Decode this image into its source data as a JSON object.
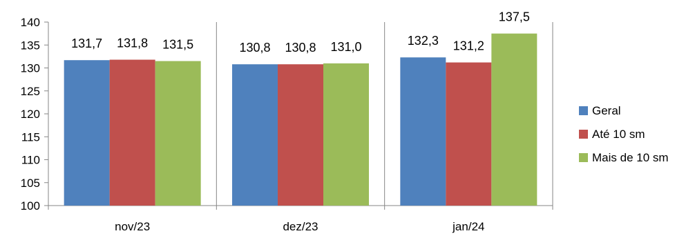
{
  "chart_data": {
    "type": "bar",
    "categories": [
      "nov/23",
      "dez/23",
      "jan/24"
    ],
    "series": [
      {
        "name": "Geral",
        "color": "#4F81BD",
        "values": [
          131.7,
          130.8,
          132.3
        ],
        "labels": [
          "131,7",
          "130,8",
          "132,3"
        ]
      },
      {
        "name": "Até 10 sm",
        "color": "#C0504D",
        "values": [
          131.8,
          130.8,
          131.2
        ],
        "labels": [
          "131,8",
          "130,8",
          "131,2"
        ]
      },
      {
        "name": "Mais de 10 sm",
        "color": "#9BBB59",
        "values": [
          131.5,
          131.0,
          137.5
        ],
        "labels": [
          "131,5",
          "131,0",
          "137,5"
        ]
      }
    ],
    "yticks": [
      100,
      105,
      110,
      115,
      120,
      125,
      130,
      135,
      140
    ],
    "ylim": [
      100,
      140
    ],
    "title": "",
    "xlabel": "",
    "ylabel": "",
    "grid": false,
    "legend_position": "right"
  }
}
